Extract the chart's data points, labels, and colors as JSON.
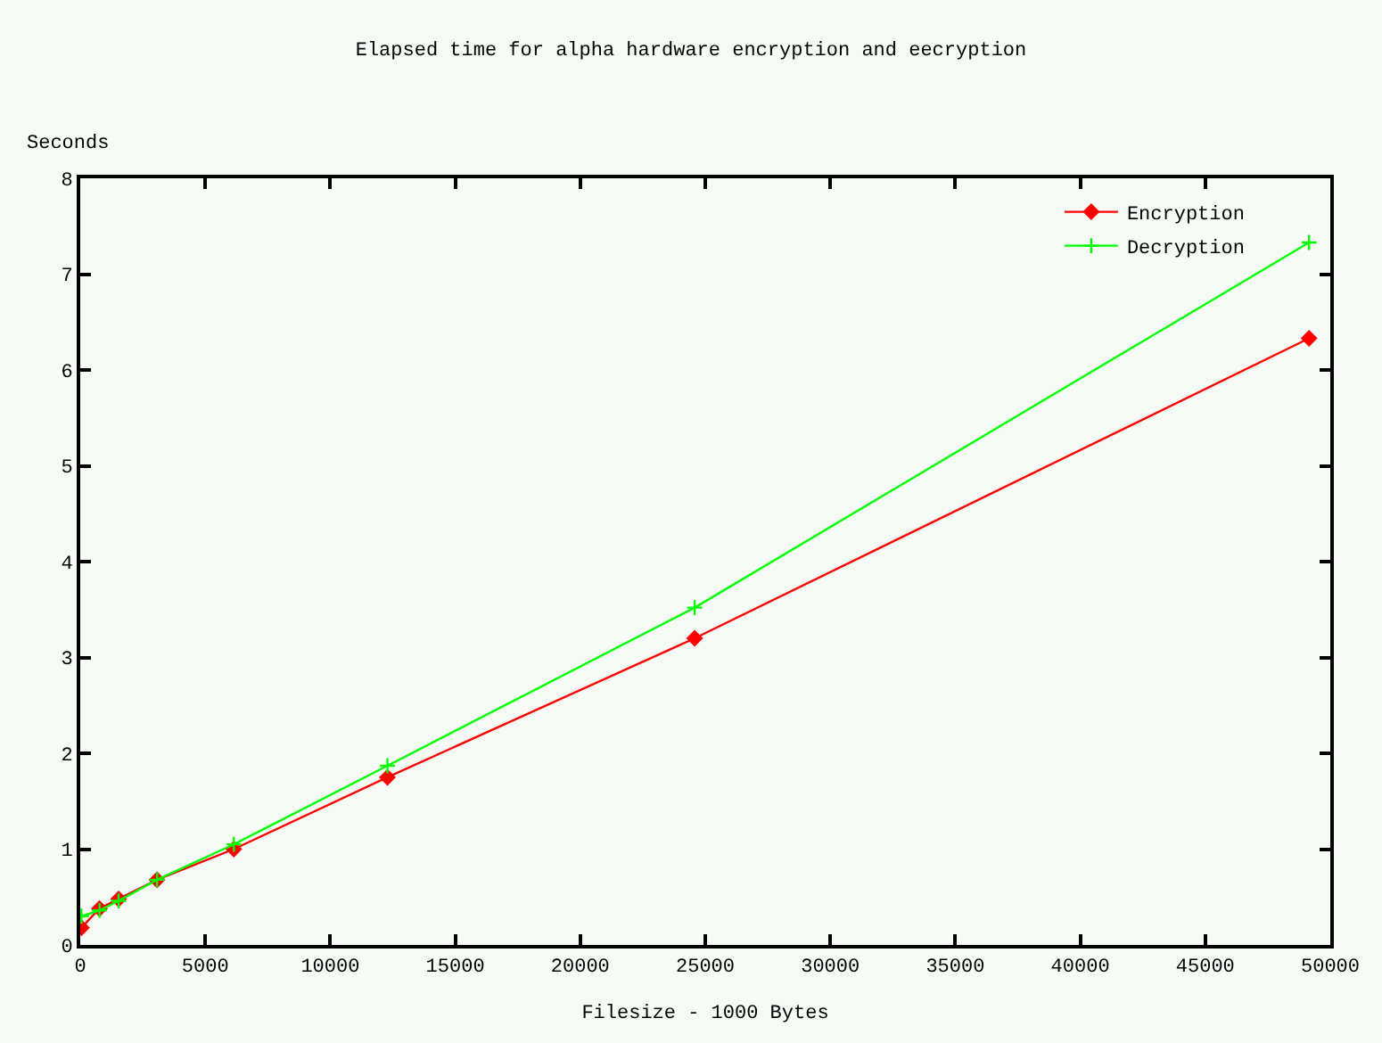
{
  "chart_data": {
    "type": "line",
    "title": "Elapsed time for alpha hardware encryption and eecryption",
    "xlabel": "Filesize - 1000 Bytes",
    "ylabel": "Seconds",
    "x": [
      48,
      768,
      1536,
      3072,
      6144,
      12288,
      24576,
      49152
    ],
    "series": [
      {
        "name": "Encryption",
        "color": "#ff0000",
        "marker": "diamond",
        "values": [
          0.18,
          0.38,
          0.48,
          0.68,
          1.0,
          1.75,
          3.2,
          6.33
        ]
      },
      {
        "name": "Decryption",
        "color": "#00ff00",
        "marker": "cross",
        "values": [
          0.3,
          0.36,
          0.46,
          0.68,
          1.05,
          1.87,
          3.52,
          7.33
        ]
      }
    ],
    "xlim": [
      0,
      50000
    ],
    "xticks": [
      0,
      5000,
      10000,
      15000,
      20000,
      25000,
      30000,
      35000,
      40000,
      45000,
      50000
    ],
    "ylim": [
      0,
      8
    ],
    "yticks": [
      0,
      1,
      2,
      3,
      4,
      5,
      6,
      7,
      8
    ],
    "grid": false,
    "legend": "top right",
    "line_style": "solid"
  }
}
